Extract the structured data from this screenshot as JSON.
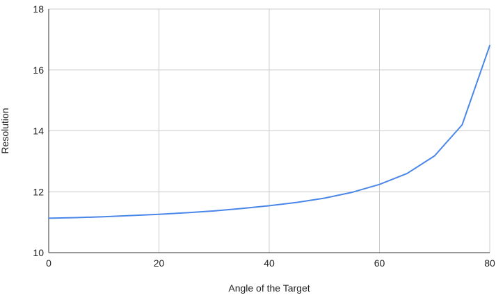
{
  "chart_data": {
    "type": "line",
    "title": "",
    "xlabel": "Angle of the Target",
    "ylabel": "Resolution",
    "xlim": [
      0,
      80
    ],
    "ylim": [
      10,
      18
    ],
    "xticks": [
      0,
      20,
      40,
      60,
      80
    ],
    "yticks": [
      10,
      12,
      14,
      16,
      18
    ],
    "grid": true,
    "legend": "none",
    "series": [
      {
        "color": "#4a86e8",
        "x": [
          0,
          5,
          10,
          15,
          20,
          25,
          30,
          35,
          40,
          45,
          50,
          55,
          60,
          65,
          70,
          75,
          80
        ],
        "y": [
          11.13,
          11.15,
          11.18,
          11.22,
          11.26,
          11.31,
          11.37,
          11.45,
          11.54,
          11.65,
          11.79,
          11.98,
          12.24,
          12.6,
          13.18,
          14.2,
          16.8
        ]
      }
    ]
  }
}
